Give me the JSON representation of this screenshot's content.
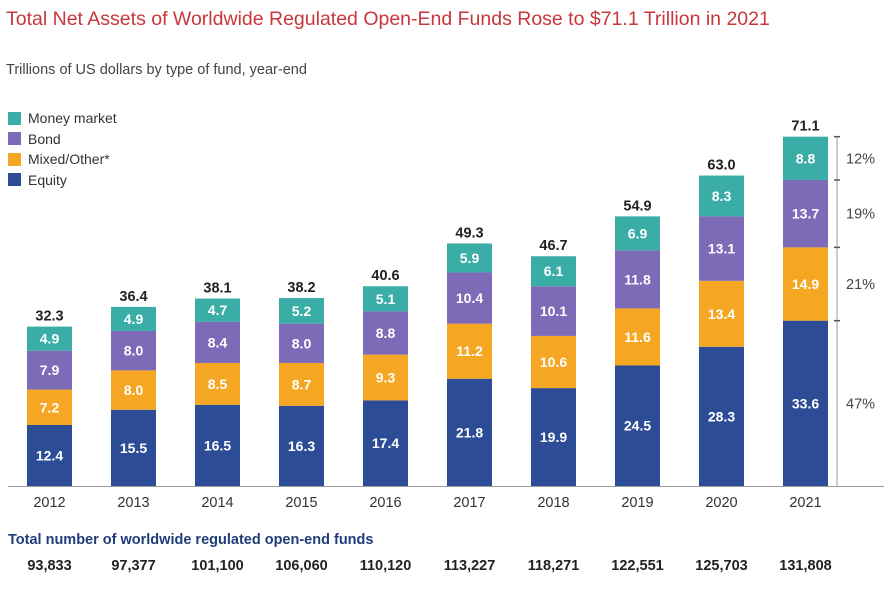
{
  "title": "Total Net Assets of Worldwide Regulated Open-End Funds Rose to $71.1 Trillion in 2021",
  "subtitle": "Trillions of US dollars by type of fund, year-end",
  "colors": {
    "money_market": "#3aada6",
    "bond": "#7e6bb8",
    "mixed_other": "#f5a623",
    "equity": "#2c4c96"
  },
  "chart_data": {
    "type": "bar",
    "stacked": true,
    "title": "Total Net Assets of Worldwide Regulated Open-End Funds Rose to $71.1 Trillion in 2021",
    "subtitle": "Trillions of US dollars by type of fund, year-end",
    "categories": [
      "2012",
      "2013",
      "2014",
      "2015",
      "2016",
      "2017",
      "2018",
      "2019",
      "2020",
      "2021"
    ],
    "series": [
      {
        "name": "Equity",
        "values": [
          12.4,
          15.5,
          16.5,
          16.3,
          17.4,
          21.8,
          19.9,
          24.5,
          28.3,
          33.6
        ]
      },
      {
        "name": "Mixed/Other*",
        "values": [
          7.2,
          8.0,
          8.5,
          8.7,
          9.3,
          11.2,
          10.6,
          11.6,
          13.4,
          14.9
        ]
      },
      {
        "name": "Bond",
        "values": [
          7.9,
          8.0,
          8.4,
          8.0,
          8.8,
          10.4,
          10.1,
          11.8,
          13.1,
          13.7
        ]
      },
      {
        "name": "Money market",
        "values": [
          4.9,
          4.9,
          4.7,
          5.2,
          5.1,
          5.9,
          6.1,
          6.9,
          8.3,
          8.8
        ]
      }
    ],
    "totals": [
      "32.3",
      "36.4",
      "38.1",
      "38.2",
      "40.6",
      "49.3",
      "46.7",
      "54.9",
      "63.0",
      "71.1"
    ],
    "share_2021": [
      {
        "series": "Money market",
        "label": "12%"
      },
      {
        "series": "Bond",
        "label": "19%"
      },
      {
        "series": "Mixed/Other*",
        "label": "21%"
      },
      {
        "series": "Equity",
        "label": "47%"
      }
    ],
    "legend_position": "top-left",
    "grid": false
  },
  "legend": [
    {
      "label": "Money market",
      "key": "money_market"
    },
    {
      "label": "Bond",
      "key": "bond"
    },
    {
      "label": "Mixed/Other*",
      "key": "mixed_other"
    },
    {
      "label": "Equity",
      "key": "equity"
    }
  ],
  "funds": {
    "label": "Total number of worldwide regulated open-end funds",
    "values": [
      "93,833",
      "97,377",
      "101,100",
      "106,060",
      "110,120",
      "113,227",
      "118,271",
      "122,551",
      "125,703",
      "131,808"
    ]
  }
}
